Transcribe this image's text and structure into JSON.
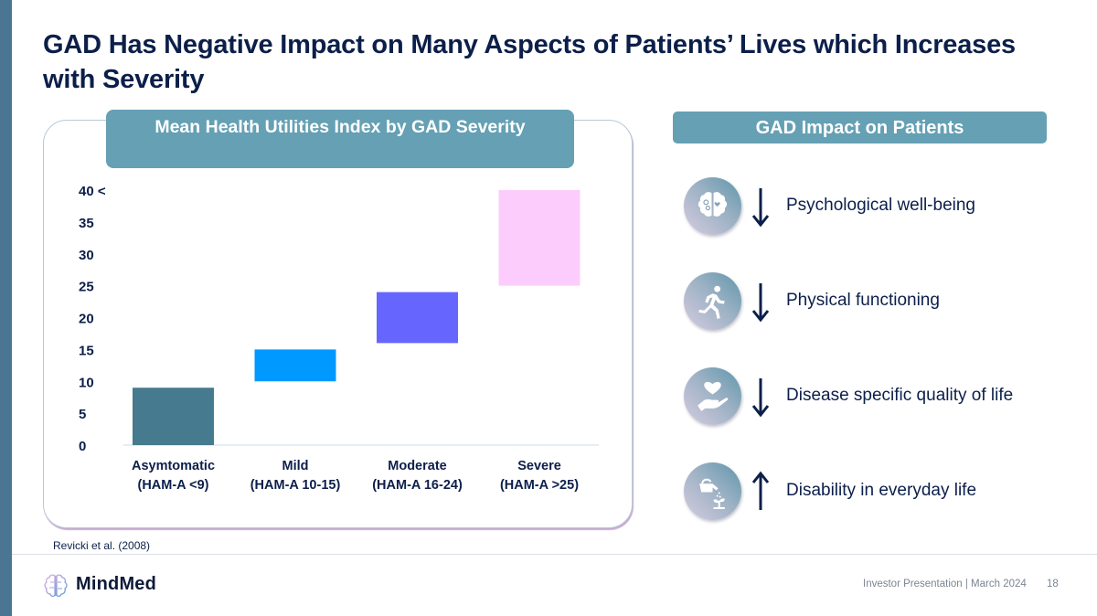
{
  "slide": {
    "title": "GAD Has Negative Impact on Many Aspects of Patients’ Lives which Increases with Severity",
    "source": "Revicki et al. (2008)",
    "footer": "Investor Presentation | March 2024",
    "page_number": "18",
    "logo_text": "MindMed",
    "colors": {
      "accent_bar": "#4a7694",
      "header_box": "#65a0b4",
      "text_dark": "#0c1f4a"
    }
  },
  "chart_data": {
    "type": "bar",
    "subtype": "floating-range",
    "title": "Mean Health Utilities Index by GAD Severity",
    "xlabel": "",
    "ylabel": "",
    "ylim": [
      0,
      40
    ],
    "yticks": [
      "0",
      "5",
      "10",
      "15",
      "20",
      "25",
      "30",
      "35",
      "40 <"
    ],
    "ytick_values": [
      0,
      5,
      10,
      15,
      20,
      25,
      30,
      35,
      40
    ],
    "grid": false,
    "legend": "none",
    "categories": [
      {
        "label": "Asymtomatic",
        "sublabel": "(HAM-A <9)"
      },
      {
        "label": "Mild",
        "sublabel": "(HAM-A 10-15)"
      },
      {
        "label": "Moderate",
        "sublabel": "(HAM-A 16-24)"
      },
      {
        "label": "Severe",
        "sublabel": "(HAM-A >25)"
      }
    ],
    "ranges": [
      [
        0,
        9
      ],
      [
        10,
        15
      ],
      [
        16,
        24
      ],
      [
        25,
        40
      ]
    ],
    "colors": [
      "#467a8e",
      "#0099ff",
      "#6666ff",
      "#fccdfc"
    ]
  },
  "impact": {
    "header": "GAD Impact on Patients",
    "items": [
      {
        "icon": "brain-icon",
        "direction": "down",
        "label": "Psychological well-being"
      },
      {
        "icon": "running-person-icon",
        "direction": "down",
        "label": "Physical functioning"
      },
      {
        "icon": "heart-hand-icon",
        "direction": "down",
        "label": "Disease specific quality of life"
      },
      {
        "icon": "watering-plant-icon",
        "direction": "up",
        "label": "Disability in everyday life"
      }
    ]
  }
}
